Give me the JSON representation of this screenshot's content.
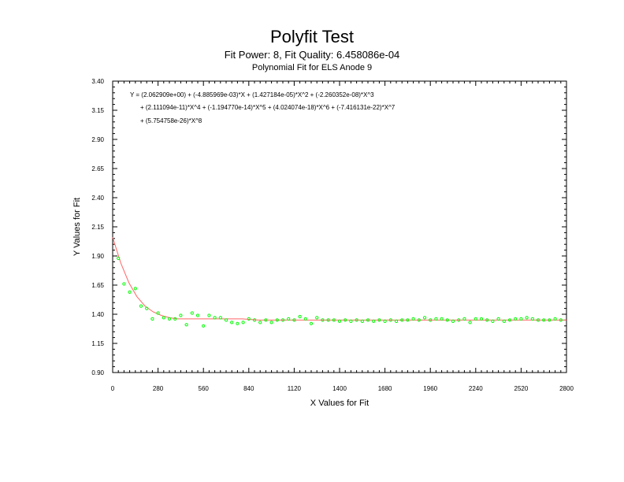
{
  "header": {
    "title": "Polyfit Test",
    "subtitle": "Fit Power: 8, Fit Quality: 6.458086e-04",
    "subtitle2": "Polynomial Fit for ELS Anode 9"
  },
  "chart_data": {
    "type": "scatter",
    "title": "Polyfit Test",
    "xlabel": "X Values for Fit",
    "ylabel": "Y Values for Fit",
    "xlim": [
      0,
      2800
    ],
    "ylim": [
      0.9,
      3.4
    ],
    "x_ticks": [
      "0",
      "280",
      "560",
      "840",
      "1120",
      "1400",
      "1680",
      "1960",
      "2240",
      "2520",
      "2800"
    ],
    "y_ticks": [
      "0.90",
      "1.15",
      "1.40",
      "1.65",
      "1.90",
      "2.15",
      "2.40",
      "2.65",
      "2.90",
      "3.15",
      "3.40"
    ],
    "equation_lines": [
      "Y = (2.062909e+00) + (-4.885969e-03)*X + (1.427184e-05)*X^2 + (-2.260352e-08)*X^3",
      "+ (2.111094e-11)*X^4 + (-1.194770e-14)*X^5 + (4.024074e-18)*X^6 + (-7.416131e-22)*X^7",
      "+ (5.754758e-26)*X^8"
    ],
    "colors": {
      "points": "#00ff00",
      "fit": "#ff6666",
      "axes": "#000000"
    },
    "series": [
      {
        "type": "scatter",
        "x": [
          35,
          70,
          105,
          140,
          175,
          210,
          245,
          280,
          315,
          350,
          385,
          420,
          455,
          490,
          525,
          560,
          595,
          630,
          665,
          700,
          735,
          770,
          805,
          840,
          875,
          910,
          945,
          980,
          1015,
          1050,
          1085,
          1120,
          1155,
          1190,
          1225,
          1260,
          1295,
          1330,
          1365,
          1400,
          1435,
          1470,
          1505,
          1540,
          1575,
          1610,
          1645,
          1680,
          1715,
          1750,
          1785,
          1820,
          1855,
          1890,
          1925,
          1960,
          1995,
          2030,
          2065,
          2100,
          2135,
          2170,
          2205,
          2240,
          2275,
          2310,
          2345,
          2380,
          2415,
          2450,
          2485,
          2520,
          2555,
          2590,
          2625,
          2660,
          2695,
          2730,
          2765
        ],
        "y": [
          1.88,
          1.66,
          1.59,
          1.62,
          1.47,
          1.45,
          1.36,
          1.41,
          1.37,
          1.36,
          1.36,
          1.39,
          1.31,
          1.41,
          1.39,
          1.3,
          1.39,
          1.37,
          1.37,
          1.35,
          1.33,
          1.32,
          1.33,
          1.36,
          1.35,
          1.33,
          1.35,
          1.33,
          1.35,
          1.35,
          1.36,
          1.35,
          1.38,
          1.36,
          1.32,
          1.37,
          1.35,
          1.35,
          1.35,
          1.34,
          1.35,
          1.34,
          1.35,
          1.34,
          1.35,
          1.34,
          1.35,
          1.34,
          1.35,
          1.34,
          1.35,
          1.35,
          1.36,
          1.35,
          1.37,
          1.35,
          1.36,
          1.36,
          1.35,
          1.34,
          1.35,
          1.36,
          1.33,
          1.36,
          1.36,
          1.35,
          1.34,
          1.36,
          1.34,
          1.35,
          1.36,
          1.36,
          1.37,
          1.36,
          1.35,
          1.35,
          1.35,
          1.36,
          1.35
        ]
      },
      {
        "type": "line",
        "x": [
          0,
          50,
          100,
          150,
          200,
          250,
          300,
          350,
          400,
          450,
          500,
          600,
          700,
          800,
          900,
          1000,
          1200,
          1400,
          1600,
          1800,
          2000,
          2200,
          2400,
          2600,
          2800
        ],
        "y": [
          2.06,
          1.84,
          1.67,
          1.55,
          1.47,
          1.42,
          1.39,
          1.37,
          1.36,
          1.36,
          1.36,
          1.36,
          1.36,
          1.36,
          1.35,
          1.35,
          1.35,
          1.35,
          1.35,
          1.35,
          1.35,
          1.35,
          1.35,
          1.35,
          1.35
        ]
      }
    ]
  }
}
